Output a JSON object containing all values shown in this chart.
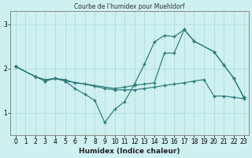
{
  "title": "Courbe de l'humidex pour Muehldorf",
  "xlabel": "Humidex (Indice chaleur)",
  "background_color": "#cff0f0",
  "grid_color": "#a8d8d8",
  "line_color": "#2a7a7a",
  "xlim": [
    -0.5,
    23.5
  ],
  "ylim": [
    0.5,
    3.3
  ],
  "yticks": [
    1,
    2,
    3
  ],
  "xticks": [
    0,
    1,
    2,
    3,
    4,
    5,
    6,
    7,
    8,
    9,
    10,
    11,
    12,
    13,
    14,
    15,
    16,
    17,
    18,
    19,
    20,
    21,
    22,
    23
  ],
  "line1_x": [
    0,
    2,
    3,
    4,
    5,
    6,
    7,
    8,
    9,
    10,
    11,
    12,
    13,
    14,
    15,
    16,
    17,
    18,
    19,
    20,
    21,
    22,
    23
  ],
  "line1_y": [
    2.05,
    1.82,
    1.75,
    1.78,
    1.75,
    1.68,
    1.65,
    1.6,
    1.55,
    1.52,
    1.52,
    1.52,
    1.55,
    1.58,
    1.62,
    1.65,
    1.68,
    1.72,
    1.75,
    1.38,
    1.38,
    1.35,
    1.32
  ],
  "line2_x": [
    0,
    2,
    3,
    4,
    5,
    6,
    7,
    8,
    9,
    10,
    11,
    12,
    13,
    14,
    15,
    16,
    17,
    18,
    20,
    21,
    22,
    23
  ],
  "line2_y": [
    2.05,
    1.82,
    1.72,
    1.78,
    1.72,
    1.55,
    1.42,
    1.28,
    0.78,
    1.08,
    1.25,
    1.65,
    2.1,
    2.6,
    2.75,
    2.72,
    2.88,
    2.62,
    2.38,
    2.08,
    1.78,
    1.35
  ],
  "line3_x": [
    0,
    2,
    3,
    4,
    5,
    10,
    11,
    12,
    13,
    14,
    15,
    16,
    17,
    18,
    20,
    21,
    22,
    23
  ],
  "line3_y": [
    2.05,
    1.82,
    1.72,
    1.78,
    1.72,
    1.55,
    1.58,
    1.62,
    1.65,
    1.68,
    2.35,
    2.35,
    2.88,
    2.62,
    2.38,
    2.08,
    1.78,
    1.35
  ]
}
